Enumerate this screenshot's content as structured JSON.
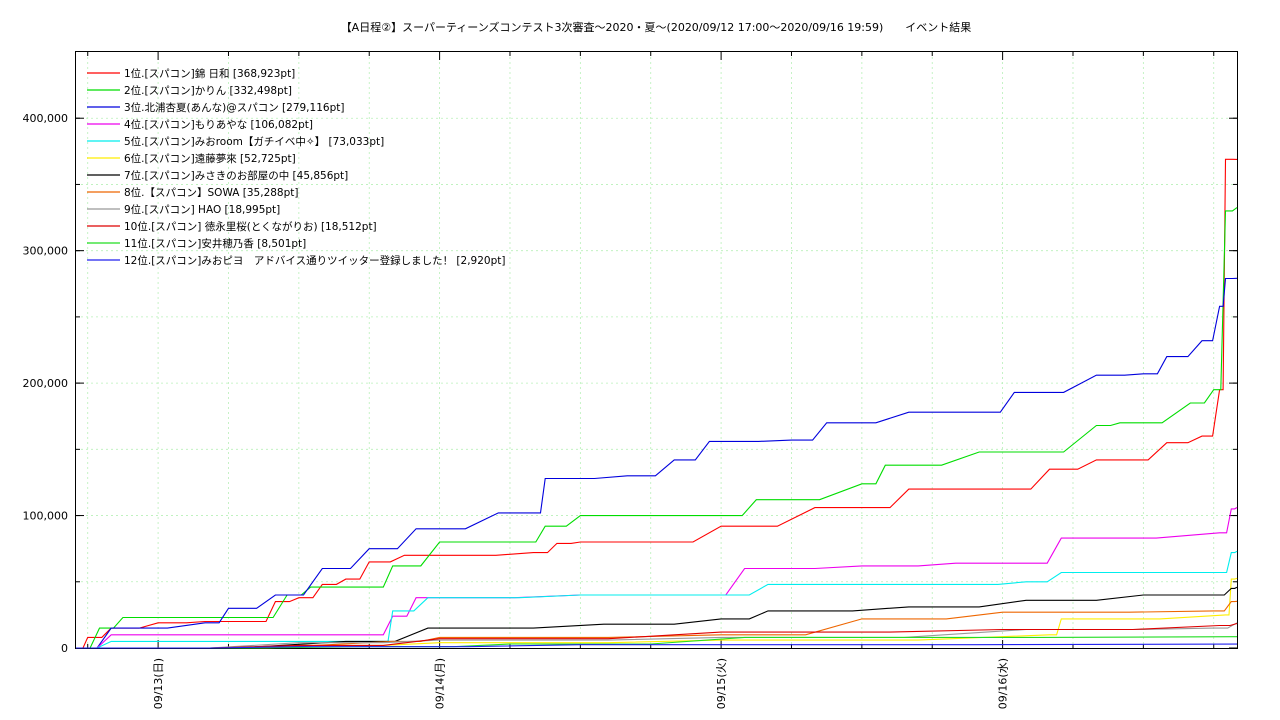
{
  "chart_data": {
    "type": "line",
    "title": "【A日程②】スーパーティーンズコンテスト3次審査〜2020・夏〜(2020/09/12 17:00〜2020/09/16 19:59)　　イベント結果",
    "xlabel": "",
    "ylabel": "",
    "ylim": [
      0,
      450000
    ],
    "xlim": [
      "2020-09-12 17:00",
      "2020-09-16 19:59"
    ],
    "x_ticks": [
      "09/13(日)",
      "09/14(月)",
      "09/15(火)",
      "09/16(水)"
    ],
    "y_ticks": [
      "0",
      "100,000",
      "200,000",
      "300,000",
      "400,000"
    ],
    "y_tick_values": [
      0,
      100000,
      200000,
      300000,
      400000
    ],
    "grid": true,
    "legend_position": "top-left",
    "series": [
      {
        "name": "1位.[スパコン]錦 日和 [368,923pt]",
        "color": "#ff0000",
        "x": [
          "2020-09-12 17:00",
          "2020-09-12 18:00",
          "2020-09-12 20:00",
          "2020-09-13 00:00",
          "2020-09-13 04:00",
          "2020-09-13 08:00",
          "2020-09-13 10:00",
          "2020-09-13 12:00",
          "2020-09-13 14:00",
          "2020-09-13 16:00",
          "2020-09-13 18:00",
          "2020-09-13 21:00",
          "2020-09-14 00:00",
          "2020-09-14 08:00",
          "2020-09-14 10:00",
          "2020-09-14 12:00",
          "2020-09-14 18:00",
          "2020-09-15 00:00",
          "2020-09-15 08:00",
          "2020-09-15 12:00",
          "2020-09-15 16:00",
          "2020-09-16 00:00",
          "2020-09-16 04:00",
          "2020-09-16 08:00",
          "2020-09-16 10:00",
          "2020-09-16 14:00",
          "2020-09-16 17:00",
          "2020-09-16 18:30",
          "2020-09-16 19:00",
          "2020-09-16 19:59"
        ],
        "values": [
          0,
          8000,
          15000,
          19000,
          20000,
          20000,
          35000,
          38000,
          48000,
          52000,
          65000,
          70000,
          70000,
          72000,
          79000,
          80000,
          80000,
          92000,
          106000,
          106000,
          120000,
          120000,
          135000,
          142000,
          142000,
          155000,
          160000,
          195000,
          369000,
          368923
        ]
      },
      {
        "name": "2位.[スパコン]かりん [332,498pt]",
        "color": "#00dd00",
        "x": [
          "2020-09-12 17:00",
          "2020-09-12 19:00",
          "2020-09-12 21:00",
          "2020-09-13 08:00",
          "2020-09-13 11:00",
          "2020-09-13 13:00",
          "2020-09-13 18:00",
          "2020-09-13 20:00",
          "2020-09-14 00:00",
          "2020-09-14 07:00",
          "2020-09-14 09:00",
          "2020-09-14 12:00",
          "2020-09-15 00:00",
          "2020-09-15 03:00",
          "2020-09-15 12:00",
          "2020-09-15 14:00",
          "2020-09-15 22:00",
          "2020-09-16 01:00",
          "2020-09-16 08:00",
          "2020-09-16 10:00",
          "2020-09-16 16:00",
          "2020-09-16 18:00",
          "2020-09-16 19:00",
          "2020-09-16 19:59"
        ],
        "values": [
          0,
          15000,
          23000,
          23000,
          40000,
          46000,
          46000,
          62000,
          80000,
          80000,
          92000,
          100000,
          100000,
          112000,
          124000,
          138000,
          148000,
          148000,
          168000,
          170000,
          185000,
          195000,
          330000,
          332498
        ]
      },
      {
        "name": "3位.北浦杏夏(あんな)@スパコン [279,116pt]",
        "color": "#0000dd",
        "x": [
          "2020-09-12 17:00",
          "2020-09-12 20:00",
          "2020-09-13 04:00",
          "2020-09-13 06:00",
          "2020-09-13 10:00",
          "2020-09-13 14:00",
          "2020-09-13 18:00",
          "2020-09-13 22:00",
          "2020-09-14 05:00",
          "2020-09-14 08:00",
          "2020-09-14 09:00",
          "2020-09-14 16:00",
          "2020-09-14 20:00",
          "2020-09-14 23:00",
          "2020-09-15 06:00",
          "2020-09-15 09:00",
          "2020-09-15 16:00",
          "2020-09-15 22:00",
          "2020-09-16 01:00",
          "2020-09-16 08:00",
          "2020-09-16 12:00",
          "2020-09-16 14:00",
          "2020-09-16 17:00",
          "2020-09-16 18:30",
          "2020-09-16 19:00",
          "2020-09-16 19:59"
        ],
        "values": [
          0,
          15000,
          19000,
          30000,
          40000,
          60000,
          75000,
          90000,
          102000,
          102000,
          128000,
          130000,
          142000,
          156000,
          157000,
          170000,
          178000,
          178000,
          193000,
          206000,
          207000,
          220000,
          232000,
          258000,
          279000,
          279116
        ]
      },
      {
        "name": "4位.[スパコン]もりあやな [106,082pt]",
        "color": "#ee00ee",
        "x": [
          "2020-09-12 17:00",
          "2020-09-12 20:00",
          "2020-09-13 18:00",
          "2020-09-13 20:00",
          "2020-09-13 22:00",
          "2020-09-14 12:00",
          "2020-09-14 22:00",
          "2020-09-15 02:00",
          "2020-09-15 12:00",
          "2020-09-15 20:00",
          "2020-09-16 02:00",
          "2020-09-16 05:00",
          "2020-09-16 18:30",
          "2020-09-16 19:30",
          "2020-09-16 19:59"
        ],
        "values": [
          0,
          10000,
          10000,
          24000,
          38000,
          40000,
          40000,
          60000,
          62000,
          64000,
          64000,
          83000,
          87000,
          105000,
          106082
        ]
      },
      {
        "name": "5位.[スパコン]みおroom【ガチイベ中✧】 [73,033pt]",
        "color": "#00eeee",
        "x": [
          "2020-09-12 17:00",
          "2020-09-12 20:00",
          "2020-09-13 19:00",
          "2020-09-13 20:00",
          "2020-09-13 23:00",
          "2020-09-14 12:00",
          "2020-09-15 00:00",
          "2020-09-15 04:00",
          "2020-09-15 20:00",
          "2020-09-16 02:00",
          "2020-09-16 05:00",
          "2020-09-16 18:30",
          "2020-09-16 19:30",
          "2020-09-16 19:59"
        ],
        "values": [
          0,
          5000,
          5000,
          28000,
          38000,
          40000,
          40000,
          48000,
          48000,
          50000,
          57000,
          57000,
          72000,
          73033
        ]
      },
      {
        "name": "6位.[スパコン]遠藤夢來 [52,725pt]",
        "color": "#ffee00",
        "x": [
          "2020-09-12 17:00",
          "2020-09-13 12:00",
          "2020-09-14 00:00",
          "2020-09-15 00:00",
          "2020-09-16 04:00",
          "2020-09-16 05:00",
          "2020-09-16 19:00",
          "2020-09-16 19:30",
          "2020-09-16 19:59"
        ],
        "values": [
          0,
          2000,
          4000,
          6000,
          10000,
          22000,
          25000,
          52000,
          52725
        ]
      },
      {
        "name": "7位.[スパコン]みさきのお部屋の中 [45,856pt]",
        "color": "#000000",
        "x": [
          "2020-09-12 17:00",
          "2020-09-13 16:00",
          "2020-09-13 23:00",
          "2020-09-14 14:00",
          "2020-09-15 00:00",
          "2020-09-15 04:00",
          "2020-09-15 16:00",
          "2020-09-16 02:00",
          "2020-09-16 12:00",
          "2020-09-16 18:00",
          "2020-09-16 19:30",
          "2020-09-16 19:59"
        ],
        "values": [
          0,
          5000,
          15000,
          18000,
          22000,
          28000,
          31000,
          36000,
          40000,
          40000,
          45000,
          45856
        ]
      },
      {
        "name": "8位.【スパコン】SOWA [35,288pt]",
        "color": "#ee6600",
        "x": [
          "2020-09-12 17:00",
          "2020-09-13 20:00",
          "2020-09-14 00:00",
          "2020-09-15 00:00",
          "2020-09-15 12:00",
          "2020-09-16 00:00",
          "2020-09-16 18:00",
          "2020-09-16 19:30",
          "2020-09-16 19:59"
        ],
        "values": [
          0,
          5000,
          8000,
          10000,
          22000,
          27000,
          28000,
          35000,
          35288
        ]
      },
      {
        "name": "9位.[スパコン] HAO [18,995pt]",
        "color": "#999999",
        "x": [
          "2020-09-12 17:00",
          "2020-09-13 12:00",
          "2020-09-14 00:00",
          "2020-09-15 00:00",
          "2020-09-16 02:00",
          "2020-09-16 18:00",
          "2020-09-16 19:59"
        ],
        "values": [
          0,
          4000,
          6000,
          8000,
          14000,
          15000,
          18995
        ]
      },
      {
        "name": "10位.[スパコン] 徳永里桜(とくながりお) [18,512pt]",
        "color": "#dd0000",
        "x": [
          "2020-09-12 17:00",
          "2020-09-13 12:00",
          "2020-09-14 00:00",
          "2020-09-15 00:00",
          "2020-09-16 00:00",
          "2020-09-16 18:30",
          "2020-09-16 19:59"
        ],
        "values": [
          0,
          2000,
          7000,
          12000,
          14000,
          17000,
          18512
        ]
      },
      {
        "name": "11位.[スパコン]安井穂乃香 [8,501pt]",
        "color": "#22dd22",
        "x": [
          "2020-09-12 17:00",
          "2020-09-13 18:00",
          "2020-09-14 06:00",
          "2020-09-15 02:00",
          "2020-09-16 19:59"
        ],
        "values": [
          0,
          1000,
          3000,
          8000,
          8501
        ]
      },
      {
        "name": "12位.[スパコン]みおピヨ　アドバイス通りツイッター登録しました！ [2,920pt]",
        "color": "#2222ee",
        "x": [
          "2020-09-12 17:00",
          "2020-09-13 12:00",
          "2020-09-14 12:00",
          "2020-09-16 19:59"
        ],
        "values": [
          0,
          1000,
          2500,
          2920
        ]
      }
    ]
  }
}
